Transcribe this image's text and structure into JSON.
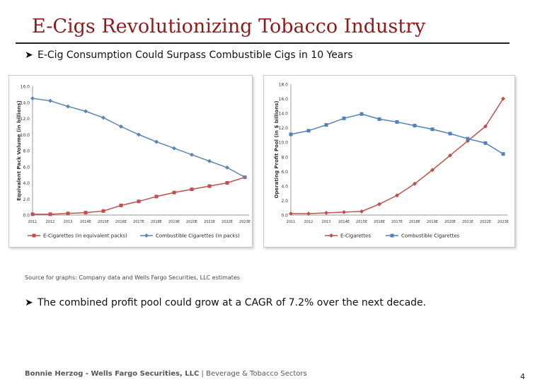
{
  "slide": {
    "title": "E-Cigs Revolutionizing Tobacco Industry",
    "bullet1": "E-Cig Consumption Could Surpass Combustible Cigs in 10 Years",
    "bullet2": "The combined profit pool could grow at a CAGR of 7.2% over the next decade.",
    "source": "Source for graphs: Company data and Wells Fargo Securities, LLC estimates",
    "footer_author": "Bonnie Herzog - Wells Fargo Securities, LLC",
    "footer_sep": " | ",
    "footer_sector": "Beverage & Tobacco Sectors",
    "page_number": "4"
  },
  "colors": {
    "title": "#8b1c1c",
    "ecig": "#c0504d",
    "combustible": "#4f81bd",
    "left_combustible": "#5b87b5"
  },
  "chart_data": [
    {
      "type": "line",
      "title": "",
      "ylabel": "Equivalent Pack Volume (in billions)",
      "ylim": [
        0,
        16
      ],
      "yticks": [
        "0.0",
        "2.0",
        "4.0",
        "6.0",
        "8.0",
        "10.0",
        "12.0",
        "14.0",
        "16.0"
      ],
      "categories": [
        "2011",
        "2012",
        "2013",
        "2014E",
        "2015E",
        "2016E",
        "2017E",
        "2018E",
        "2019E",
        "2020E",
        "2021E",
        "2022E",
        "2023E"
      ],
      "legend_position": "bottom",
      "grid": false,
      "series": [
        {
          "name": "E-Cigarettes (in equivalent packs)",
          "values": [
            0.1,
            0.1,
            0.2,
            0.3,
            0.5,
            1.2,
            1.7,
            2.3,
            2.8,
            3.2,
            3.6,
            4.0,
            4.7
          ]
        },
        {
          "name": "Combustible Cigarettes (in packs)",
          "values": [
            14.5,
            14.2,
            13.5,
            12.9,
            12.1,
            11.0,
            10.0,
            9.1,
            8.3,
            7.5,
            6.7,
            5.9,
            4.7
          ]
        }
      ]
    },
    {
      "type": "line",
      "title": "",
      "ylabel": "Operating Profit Pool (in $ billions)",
      "ylim": [
        0,
        18
      ],
      "yticks": [
        "0.0",
        "2.0",
        "4.0",
        "6.0",
        "8.0",
        "10.0",
        "12.0",
        "14.0",
        "16.0",
        "18.0"
      ],
      "categories": [
        "2011",
        "2012",
        "2013",
        "2014E",
        "2015E",
        "2016E",
        "2017E",
        "2018E",
        "2019E",
        "2020E",
        "2021E",
        "2022E",
        "2023E"
      ],
      "legend_position": "bottom",
      "grid": false,
      "series": [
        {
          "name": "E-Cigarettes",
          "values": [
            0.2,
            0.2,
            0.3,
            0.4,
            0.5,
            1.5,
            2.7,
            4.3,
            6.2,
            8.2,
            10.2,
            12.2,
            16.0
          ]
        },
        {
          "name": "Combustible Cigarettes",
          "values": [
            11.1,
            11.6,
            12.4,
            13.3,
            13.9,
            13.2,
            12.8,
            12.3,
            11.8,
            11.2,
            10.5,
            9.9,
            8.4
          ]
        }
      ]
    }
  ]
}
